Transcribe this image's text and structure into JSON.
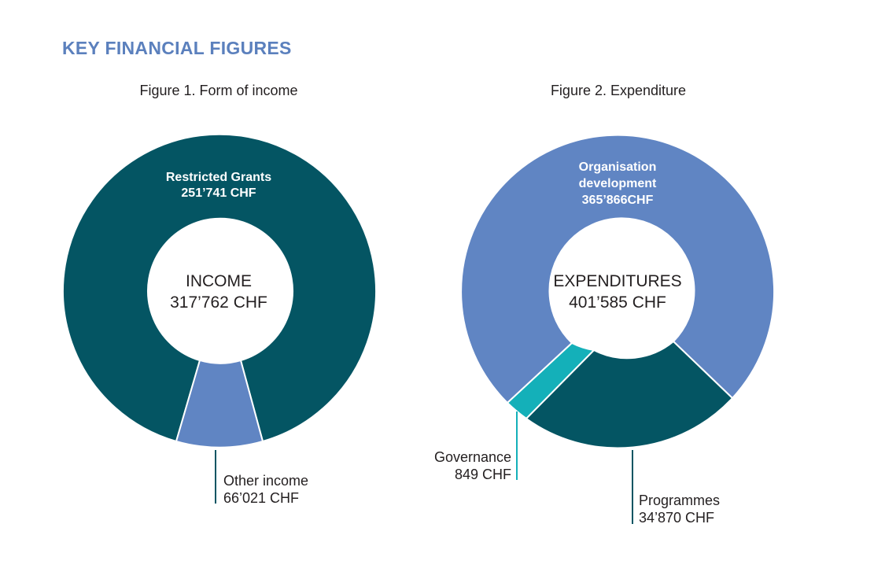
{
  "page": {
    "title": "KEY FINANCIAL FIGURES"
  },
  "colors": {
    "dark_teal": "#045563",
    "blue": "#6085c3",
    "turquoise": "#14b0b9",
    "title": "#5b80bd"
  },
  "chart_data": [
    {
      "type": "pie",
      "title": "Figure 1. Form of income",
      "center_label": [
        "INCOME",
        "317’762 CHF"
      ],
      "slices": [
        {
          "label": "Restricted Grants",
          "value_text": "251’741 CHF",
          "value": 251741,
          "color": "#045563"
        },
        {
          "label": "Other income",
          "value_text": "66’021 CHF",
          "value": 66021,
          "color": "#6085c3"
        }
      ]
    },
    {
      "type": "pie",
      "title": "Figure 2. Expenditure",
      "center_label": [
        "EXPENDITURES",
        "401’585 CHF"
      ],
      "slices": [
        {
          "label": [
            "Organisation",
            "development"
          ],
          "value_text": "365’866CHF",
          "value": 365866,
          "color": "#6085c3"
        },
        {
          "label": "Programmes",
          "value_text": "34’870 CHF",
          "value": 34870,
          "color": "#045563"
        },
        {
          "label": "Governance",
          "value_text": "849 CHF",
          "value": 849,
          "color": "#14b0b9"
        }
      ]
    }
  ]
}
